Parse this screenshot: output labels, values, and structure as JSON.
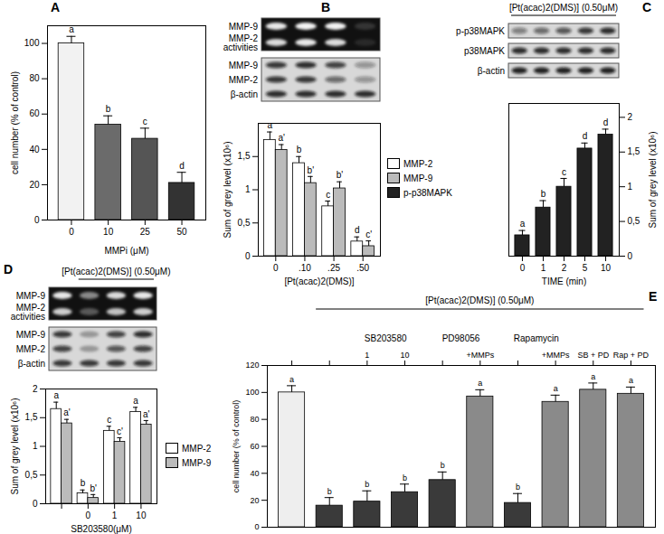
{
  "chart_data": [
    {
      "panel": "A",
      "type": "bar",
      "categories": [
        "0",
        "10",
        "25",
        "50"
      ],
      "values": [
        100,
        54,
        46,
        21
      ],
      "errors": [
        4,
        5,
        6,
        6
      ],
      "letters": [
        "a",
        "b",
        "c",
        "d"
      ],
      "colors": [
        "#f2f2f2",
        "#6b6b6b",
        "#555555",
        "#333333"
      ],
      "xlabel": "MMPi (μM)",
      "ylabel": "cell number (% of control)",
      "ylim": [
        0,
        110
      ],
      "yticks": [
        0,
        20,
        40,
        60,
        80,
        100
      ]
    },
    {
      "panel": "B",
      "type": "bar",
      "blots": [
        {
          "rows": [
            {
              "label": "MMP-9",
              "bands": [
                0.9,
                0.95,
                0.95,
                0.15
              ]
            },
            {
              "label": "MMP-2 activities",
              "bands": [
                0.85,
                0.9,
                0.85,
                0.1
              ]
            }
          ]
        },
        {
          "rows": [
            {
              "label": "MMP-9",
              "bands": [
                0.8,
                0.85,
                0.75,
                0.35
              ]
            },
            {
              "label": "MMP-2",
              "bands": [
                0.8,
                0.8,
                0.55,
                0.35
              ]
            },
            {
              "label": "β-actin",
              "bands": [
                0.85,
                0.85,
                0.85,
                0.85
              ]
            }
          ]
        }
      ],
      "categories": [
        "0",
        ".10",
        ".25",
        ".50"
      ],
      "xlabel": "[Pt(acac)2(DMS)]",
      "ylabel": "Sum of grey level (x10⁶)",
      "ylim": [
        0,
        2
      ],
      "yticks": [
        0,
        {
          "value": 0.5,
          "label": "0,5"
        },
        1,
        {
          "value": 1.5,
          "label": "1,5"
        }
      ],
      "series": [
        {
          "name": "MMP-2",
          "color": "#ffffff",
          "values": [
            1.75,
            1.4,
            0.75,
            0.22
          ],
          "errors": [
            0.12,
            0.1,
            0.08,
            0.07
          ],
          "letters": [
            "a",
            "b",
            "c",
            "d"
          ]
        },
        {
          "name": "MMP-9",
          "color": "#bbbbbb",
          "values": [
            1.6,
            1.1,
            1.02,
            0.15
          ],
          "errors": [
            0.08,
            0.1,
            0.1,
            0.08
          ],
          "letters": [
            "a'",
            "b'",
            "b'",
            "c'"
          ]
        }
      ]
    },
    {
      "panel": "C",
      "type": "bar",
      "header": "[Pt(acac)2(DMS)] (0.50μM)",
      "blots": [
        {
          "rows": [
            {
              "label": "p-p38MAPK",
              "bands": [
                0.45,
                0.55,
                0.65,
                0.8,
                0.85
              ]
            }
          ]
        },
        {
          "rows": [
            {
              "label": "p38MAPK",
              "bands": [
                0.85,
                0.85,
                0.85,
                0.85,
                0.85
              ]
            }
          ]
        },
        {
          "rows": [
            {
              "label": "β-actin",
              "bands": [
                0.9,
                0.9,
                0.9,
                0.9,
                0.9
              ]
            }
          ]
        }
      ],
      "categories": [
        "0",
        "1",
        "2",
        "5",
        "10"
      ],
      "xlabel": "TIME (min)",
      "ylabel": "Sum of grey level (x10⁶)",
      "ylim": [
        0,
        2.2
      ],
      "yticks": [
        0,
        {
          "value": 0.5,
          "label": "0,5"
        },
        1,
        {
          "value": 1.5,
          "label": "1,5"
        },
        2
      ],
      "series": [
        {
          "name": "p-p38MAPK",
          "color": "#222222",
          "values": [
            0.3,
            0.7,
            1.0,
            1.55,
            1.75
          ],
          "errors": [
            0.07,
            0.1,
            0.12,
            0.08,
            0.08
          ],
          "letters": [
            "a",
            "b",
            "c",
            "d",
            "d"
          ]
        }
      ]
    },
    {
      "panel": "D",
      "type": "bar",
      "header": "[Pt(acac)2(DMS)] (0.50μM)",
      "blots": [
        {
          "rows": [
            {
              "label": "MMP-9",
              "bands": [
                0.9,
                0.5,
                0.85,
                0.9
              ]
            },
            {
              "label": "MMP-2 activities",
              "bands": [
                0.8,
                0.3,
                0.75,
                0.8
              ]
            }
          ]
        },
        {
          "rows": [
            {
              "label": "MMP-9",
              "bands": [
                0.8,
                0.3,
                0.75,
                0.85
              ]
            },
            {
              "label": "MMP-2",
              "bands": [
                0.75,
                0.3,
                0.65,
                0.75
              ]
            },
            {
              "label": "β-actin",
              "bands": [
                0.8,
                0.8,
                0.8,
                0.8
              ]
            }
          ]
        }
      ],
      "categories": [
        null,
        "0",
        "1",
        "10"
      ],
      "xlabel": "SB203580(μM)",
      "ylabel": "Sum of grey level (x10⁶)",
      "ylim": [
        0,
        2
      ],
      "yticks": [
        0,
        {
          "value": 0.5,
          "label": "0,5"
        },
        1,
        {
          "value": 1.5,
          "label": "1,5"
        },
        2
      ],
      "series": [
        {
          "name": "MMP-2",
          "color": "#ffffff",
          "values": [
            1.65,
            0.18,
            1.27,
            1.6
          ],
          "errors": [
            0.12,
            0.06,
            0.08,
            0.08
          ],
          "letters": [
            "a",
            "b",
            "c",
            "a"
          ]
        },
        {
          "name": "MMP-9",
          "color": "#bbbbbb",
          "values": [
            1.4,
            0.1,
            1.08,
            1.38
          ],
          "errors": [
            0.07,
            0.06,
            0.07,
            0.07
          ],
          "letters": [
            "a'",
            "b'",
            "c'",
            "a'"
          ]
        }
      ]
    },
    {
      "panel": "E",
      "type": "bar",
      "header": "[Pt(acac)2(DMS)] (0.50μM)",
      "categories": [
        null,
        null,
        "1",
        "10",
        null,
        "+MMPs",
        null,
        "+MMPs",
        "SB + PD",
        "Rap + PD"
      ],
      "groups": [
        {
          "label": "SB203580",
          "categories": [
            2,
            3
          ]
        },
        {
          "label": "PD98056",
          "categories": [
            4,
            5
          ]
        },
        {
          "label": "Rapamycin",
          "categories": [
            6,
            7
          ]
        }
      ],
      "values": [
        100,
        16,
        19,
        26,
        35,
        97,
        18,
        93,
        102,
        99
      ],
      "errors": [
        5,
        6,
        8,
        6,
        6,
        5,
        7,
        5,
        5,
        5
      ],
      "letters": [
        "a",
        "b",
        "b",
        "b",
        "b",
        "a",
        "b",
        "a",
        "a",
        "a"
      ],
      "colors": [
        "#eeeeee",
        "#3a3a3a",
        "#3a3a3a",
        "#3a3a3a",
        "#3a3a3a",
        "#8a8a8a",
        "#3a3a3a",
        "#8a8a8a",
        "#8a8a8a",
        "#8a8a8a"
      ],
      "ylabel": "cell number (% of control)",
      "ylim": [
        0,
        120
      ],
      "yticks": [
        0,
        20,
        40,
        60,
        80,
        100,
        120
      ]
    }
  ]
}
